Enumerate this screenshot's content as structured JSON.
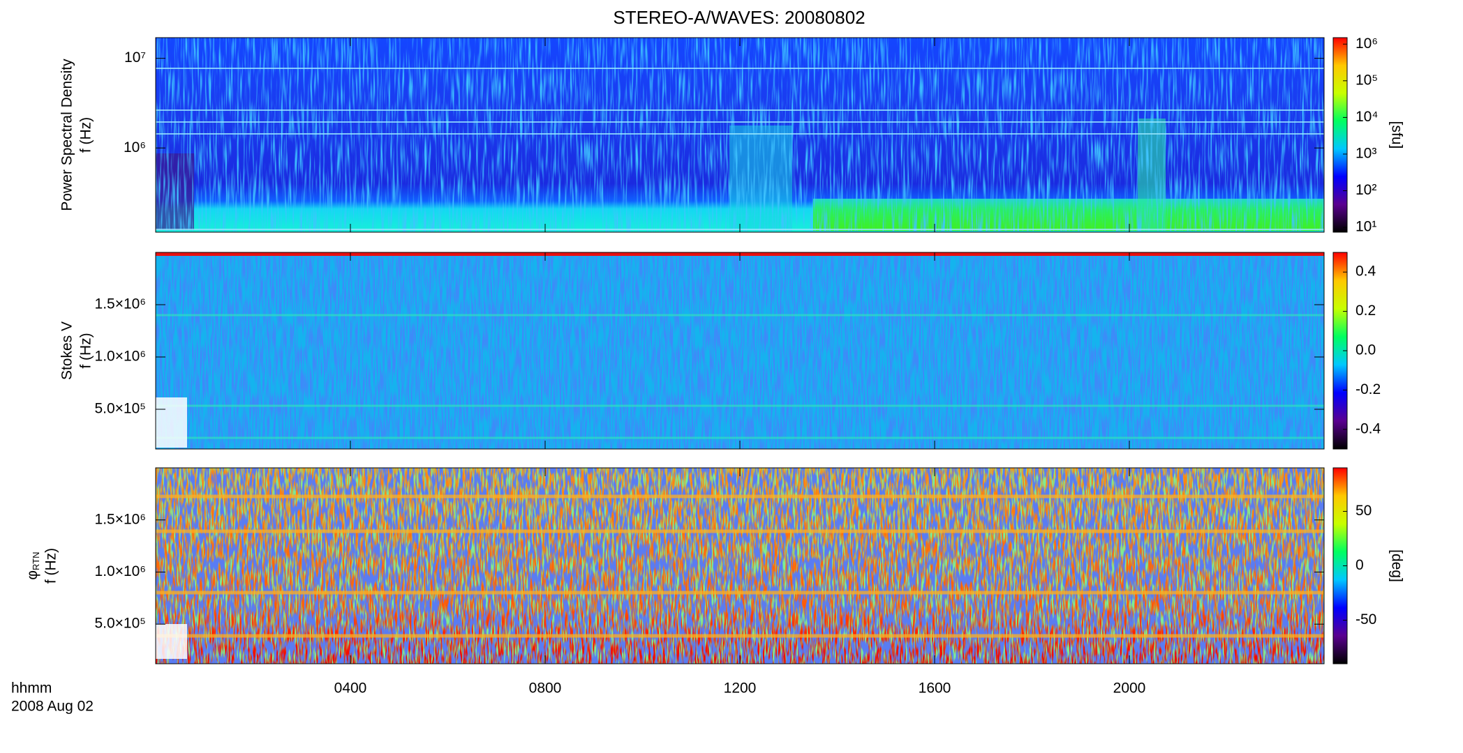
{
  "title": "STEREO-A/WAVES: 20080802",
  "x_axis": {
    "label": "hhmm",
    "date": "2008 Aug 02",
    "xlim": [
      0,
      24
    ],
    "xticks": [
      {
        "value": 4,
        "label": "0400"
      },
      {
        "value": 8,
        "label": "0800"
      },
      {
        "value": 12,
        "label": "1200"
      },
      {
        "value": 16,
        "label": "1600"
      },
      {
        "value": 20,
        "label": "2000"
      }
    ]
  },
  "chart_data": [
    {
      "type": "heatmap",
      "ylabel": [
        "Power Spectral Density",
        "f (Hz)"
      ],
      "log_y": true,
      "ylim": [
        115000,
        17000000
      ],
      "yticks": [
        {
          "value": 1000000,
          "label": "10⁶"
        },
        {
          "value": 10000000,
          "label": "10⁷"
        }
      ],
      "colorbar_label": "[sfu]",
      "log_color": true,
      "clim": [
        7.4,
        1500000
      ],
      "cticks": [
        {
          "value": 10,
          "label": "10¹"
        },
        {
          "value": 100,
          "label": "10²"
        },
        {
          "value": 1000,
          "label": "10³"
        },
        {
          "value": 10000,
          "label": "10⁴"
        },
        {
          "value": 100000,
          "label": "10⁵"
        },
        {
          "value": 1000000,
          "label": "10⁶"
        }
      ],
      "colormap": [
        "#000000",
        "#5a0090",
        "#0000ff",
        "#00c8ff",
        "#00ff60",
        "#c8ff00",
        "#ffc800",
        "#ff0000"
      ]
    },
    {
      "type": "heatmap",
      "ylabel": [
        "Stokes V",
        "f (Hz)"
      ],
      "log_y": false,
      "ylim": [
        120000,
        2000000
      ],
      "yticks": [
        {
          "value": 500000,
          "label": "5.0×10⁵"
        },
        {
          "value": 1000000,
          "label": "1.0×10⁶"
        },
        {
          "value": 1500000,
          "label": "1.5×10⁶"
        }
      ],
      "log_color": false,
      "clim": [
        -0.5,
        0.5
      ],
      "cticks": [
        -0.4,
        -0.2,
        {
          "value": 0,
          "label": "0.0"
        },
        0.2,
        0.4
      ],
      "colormap": [
        "#000000",
        "#5a0090",
        "#0000ff",
        "#00c8ff",
        "#00ff60",
        "#c8ff00",
        "#ffc800",
        "#ff0000"
      ]
    },
    {
      "type": "heatmap",
      "ylabel_symbol": "φ",
      "ylabel_subscript": "RTN",
      "ylabel": [
        "f (Hz)"
      ],
      "log_y": false,
      "ylim": [
        120000,
        2000000
      ],
      "yticks": [
        {
          "value": 500000,
          "label": "5.0×10⁵"
        },
        {
          "value": 1000000,
          "label": "1.0×10⁶"
        },
        {
          "value": 1500000,
          "label": "1.5×10⁶"
        }
      ],
      "colorbar_label": "[deg]",
      "log_color": false,
      "clim": [
        -90,
        90
      ],
      "cticks": [
        -50,
        0,
        50
      ],
      "colormap": [
        "#000000",
        "#5a0090",
        "#0000ff",
        "#00c8ff",
        "#00ff60",
        "#c8ff00",
        "#ffc800",
        "#ff0000"
      ]
    }
  ]
}
